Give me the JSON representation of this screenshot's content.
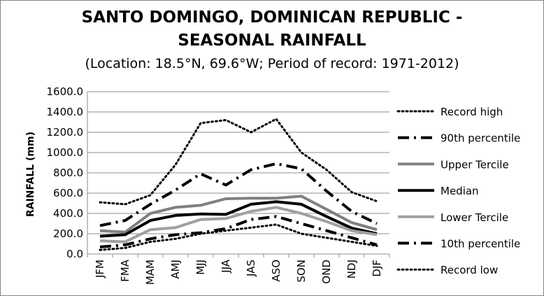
{
  "chart_data": {
    "type": "line",
    "title_line1": "SANTO DOMINGO, DOMINICAN REPUBLIC -",
    "title_line2": "SEASONAL RAINFALL",
    "subtitle": "(Location: 18.5°N, 69.6°W; Period of record: 1971-2012)",
    "ylabel": "RAINFALL (mm)",
    "xlabel": "",
    "ylim": [
      0,
      1600
    ],
    "yticks": [
      "1600.0",
      "1400.0",
      "1200.0",
      "1000.0",
      "800.0",
      "600.0",
      "400.0",
      "200.0",
      "0.0"
    ],
    "categories": [
      "JFM",
      "FMA",
      "MAM",
      "AMJ",
      "MJJ",
      "JJA",
      "JAS",
      "ASO",
      "SON",
      "OND",
      "NDJ",
      "DJF"
    ],
    "grid": "horizontal",
    "legend_position": "right",
    "series": [
      {
        "name": "Record high",
        "style": "dotted",
        "color": "#000000",
        "values": [
          510,
          490,
          580,
          880,
          1290,
          1320,
          1200,
          1330,
          1000,
          830,
          610,
          520
        ]
      },
      {
        "name": "90th percentile",
        "style": "dashdot",
        "color": "#000000",
        "values": [
          280,
          330,
          490,
          630,
          790,
          680,
          830,
          890,
          840,
          620,
          420,
          300
        ]
      },
      {
        "name": "Upper Tercile",
        "style": "solid",
        "color": "#808080",
        "values": [
          230,
          215,
          400,
          460,
          480,
          545,
          550,
          550,
          570,
          440,
          310,
          240
        ]
      },
      {
        "name": "Median",
        "style": "solid",
        "color": "#000000",
        "values": [
          175,
          190,
          330,
          380,
          395,
          390,
          490,
          515,
          490,
          370,
          255,
          200
        ]
      },
      {
        "name": "Lower Tercile",
        "style": "solid",
        "color": "#a0a0a0",
        "values": [
          130,
          120,
          240,
          260,
          340,
          350,
          420,
          460,
          400,
          320,
          230,
          190
        ]
      },
      {
        "name": "10th percentile",
        "style": "dashdot",
        "color": "#000000",
        "values": [
          70,
          90,
          150,
          190,
          210,
          250,
          340,
          370,
          300,
          230,
          160,
          90
        ]
      },
      {
        "name": "Record low",
        "style": "dotted",
        "color": "#000000",
        "values": [
          40,
          60,
          120,
          150,
          200,
          230,
          260,
          290,
          200,
          160,
          120,
          80
        ]
      }
    ]
  }
}
